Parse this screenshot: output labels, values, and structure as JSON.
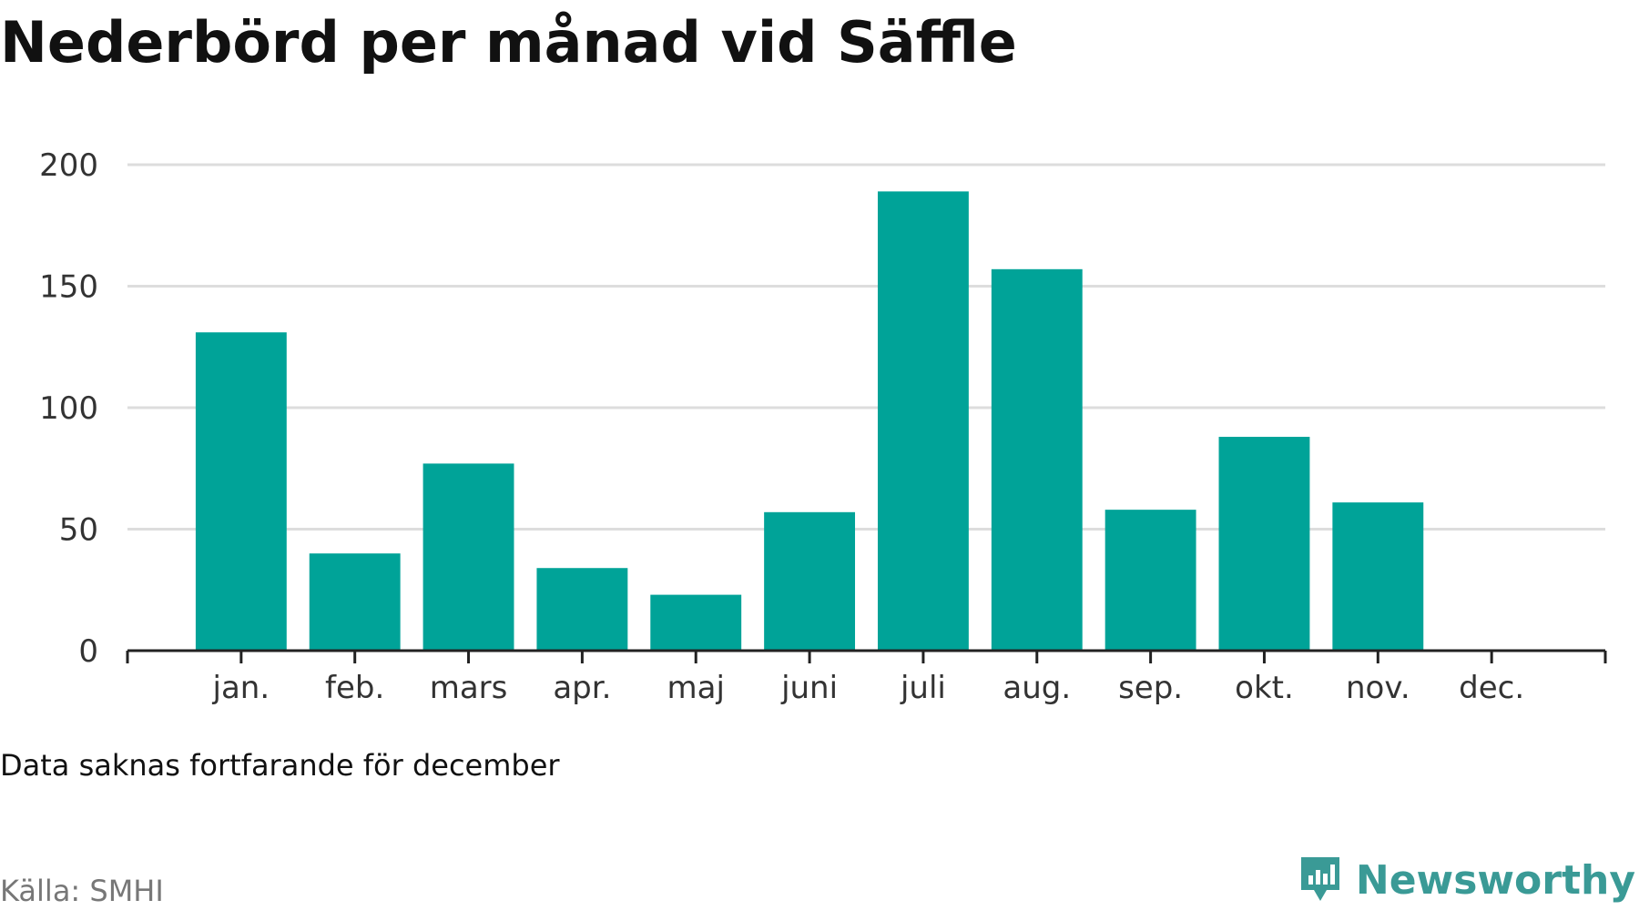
{
  "title": "Nederbörd per månad vid Säffle",
  "note": "Data saknas fortfarande för december",
  "source": "Källa: SMHI",
  "brand": {
    "name": "Newsworthy",
    "icon": "newsworthy-logo-icon",
    "color": "#3a9a96"
  },
  "chart_data": {
    "type": "bar",
    "categories": [
      "jan.",
      "feb.",
      "mars",
      "apr.",
      "maj",
      "juni",
      "juli",
      "aug.",
      "sep.",
      "okt.",
      "nov.",
      "dec."
    ],
    "values": [
      131,
      40,
      77,
      34,
      23,
      57,
      189,
      157,
      58,
      88,
      61,
      null
    ],
    "ylim": [
      0,
      200
    ],
    "yticks": [
      0,
      50,
      100,
      150,
      200
    ],
    "grid": true,
    "bar_color": "#00a398",
    "xlabel": "",
    "ylabel": ""
  }
}
